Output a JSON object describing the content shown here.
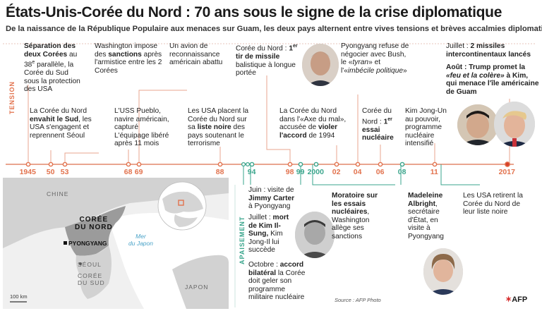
{
  "title": "États-Unis-Corée du Nord : 70 ans sous le signe de la crise diplomatique",
  "subtitle": "De la naissance de la République Populaire aux menaces sur Guam, les deux pays alternent entre vives tensions et brèves accalmies diplomatiques",
  "bands": {
    "tension": "TENSION",
    "apaisement": "APAISEMENT"
  },
  "colors": {
    "tension": "#e2724d",
    "apaisement": "#3aa58c",
    "line": "#e9a58f"
  },
  "years": [
    {
      "label": "1945",
      "type": "tension"
    },
    {
      "label": "50",
      "type": "tension"
    },
    {
      "label": "53",
      "type": "tension"
    },
    {
      "label": "68",
      "type": "tension"
    },
    {
      "label": "69",
      "type": "tension"
    },
    {
      "label": "88",
      "type": "tension"
    },
    {
      "label": "94",
      "type": "apaisement"
    },
    {
      "label": "98",
      "type": "tension"
    },
    {
      "label": "99",
      "type": "apaisement"
    },
    {
      "label": "2000",
      "type": "apaisement"
    },
    {
      "label": "02",
      "type": "tension"
    },
    {
      "label": "04",
      "type": "tension"
    },
    {
      "label": "06",
      "type": "tension"
    },
    {
      "label": "08",
      "type": "apaisement"
    },
    {
      "label": "11",
      "type": "tension"
    },
    {
      "label": "2017",
      "type": "tension"
    }
  ],
  "events": {
    "e1945": {
      "b1": "Séparation des deux Corées",
      "t1": " au 38",
      "sup": "e",
      "t2": " parallèle, la Corée du Sud sous la protection des USA"
    },
    "e1950": {
      "t1": "La Corée du Nord ",
      "b1": "envahit le Sud",
      "t2": ", les USA s'engagent et reprennent Séoul"
    },
    "e1953": {
      "t1": "Washington impose des ",
      "b1": "sanctions",
      "t2": " après l'armistice entre les 2 Corées"
    },
    "e1968": {
      "t1": "L'USS Pueblo, navire américain, capturé",
      "t2": "L'équipage libéré après 11 mois"
    },
    "e1969": {
      "t1": "Un avion de reconnaissance américain abattu"
    },
    "e1988": {
      "t1": "Les USA placent la Corée du Nord sur sa ",
      "b1": "liste noire",
      "t2": " des pays soutenant le terrorisme"
    },
    "e1998": {
      "t1": "Corée du Nord : ",
      "b1": "1",
      "sup": "er",
      "b2": " tir de missile",
      "t2": " balistique à longue portée"
    },
    "e2002": {
      "t1": "La Corée du Nord dans l'«Axe du mal», accusée de ",
      "b1": "violer l'accord",
      "t2": " de 1994"
    },
    "e2004": {
      "t1": "Pyongyang refuse de négocier avec Bush, le «",
      "i1": "tyran",
      "t2": "» et l'«",
      "i2": "imbécile politique",
      "t3": "»"
    },
    "e2006": {
      "t1": "Corée du Nord : ",
      "b1": "1",
      "sup": "er",
      "b2": " essai nucléaire"
    },
    "e2011": {
      "t1": "Kim Jong-Un au pouvoir, programme nucléaire intensifié"
    },
    "e2017a": {
      "t1": "Juillet : ",
      "b1": "2 missiles intercontinentaux lancés"
    },
    "e2017b": {
      "b1": "Août : Trump promet à Kim, qui menace l'île américaine de Guam",
      "t1": "",
      "i1": "«feu et la colère»"
    },
    "e1994a": {
      "t1": "Juin : visite de ",
      "b1": "Jimmy Carter",
      "t2": " à Pyongyang"
    },
    "e1994b": {
      "t1": "Juillet : ",
      "b1": "mort de Kim Il-Sung,",
      "t2": " Kim Jong-Il lui succède"
    },
    "e1994c": {
      "t1": "Octobre : ",
      "b1": "accord bilatéral",
      "t2": " la Corée doit geler son programme militaire nucléaire"
    },
    "e1999": {
      "b1": "Moratoire sur les essais nucléaires",
      "t1": ", Washington allège ses sanctions"
    },
    "e2000": {
      "b1": "Madeleine Albright",
      "t1": ", secrétaire d'État, en visite à Pyongyang"
    },
    "e2008": {
      "t1": "Les USA retirent la Corée du Nord de leur liste noire"
    }
  },
  "map": {
    "chine": "CHINE",
    "coree_nord_1": "CORÉE",
    "coree_nord_2": "DU NORD",
    "pyongyang": "PYONGYANG",
    "mer_1": "Mer",
    "mer_2": "du Japon",
    "seoul": "SÉOUL",
    "coree_sud_1": "CORÉE",
    "coree_sud_2": "DU SUD",
    "japon": "JAPON",
    "scale": "100 km"
  },
  "source": "Source : AFP Photo",
  "logo": "AFP"
}
